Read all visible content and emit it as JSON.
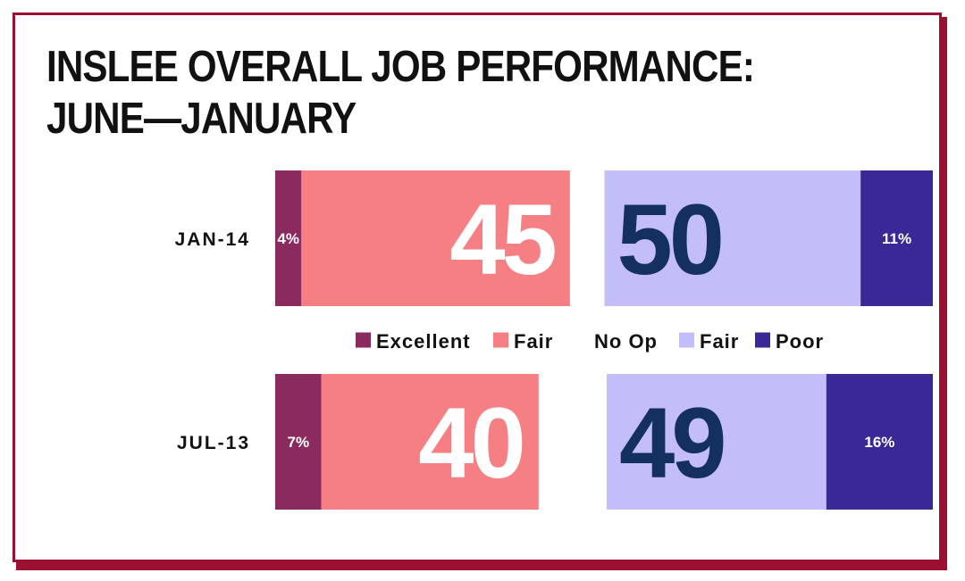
{
  "title_lines": [
    "INSLEE OVERALL JOB PERFORMANCE:",
    "JUNE—JANUARY"
  ],
  "legend": [
    {
      "label": "Excellent",
      "color": "#8a2a5e",
      "swatch": true
    },
    {
      "label": "Fair",
      "color": "#f57f83",
      "swatch": true
    },
    {
      "label": "No Op",
      "color": null,
      "swatch": false
    },
    {
      "label": "Fair",
      "color": "#c3bdfa",
      "swatch": true
    },
    {
      "label": "Poor",
      "color": "#3a2896",
      "swatch": true
    }
  ],
  "chart_data": {
    "type": "bar",
    "orientation": "horizontal-diverging",
    "categories": [
      "JAN-14",
      "JUL-13"
    ],
    "series": [
      {
        "name": "Excellent",
        "values": [
          4,
          7
        ],
        "labels": [
          "4%",
          "7%"
        ],
        "color": "#8a2a5e"
      },
      {
        "name": "Fair",
        "values": [
          41,
          33
        ],
        "color": "#f57f83"
      },
      {
        "name": "Fair",
        "values": [
          39,
          33
        ],
        "color": "#c3bdfa"
      },
      {
        "name": "Poor",
        "values": [
          11,
          16
        ],
        "labels": [
          "11%",
          "16%"
        ],
        "color": "#3a2896"
      }
    ],
    "positive_totals": [
      45,
      40
    ],
    "negative_totals": [
      50,
      49
    ],
    "positive_total_color": "#ffffff",
    "negative_total_color": "#13305e"
  }
}
